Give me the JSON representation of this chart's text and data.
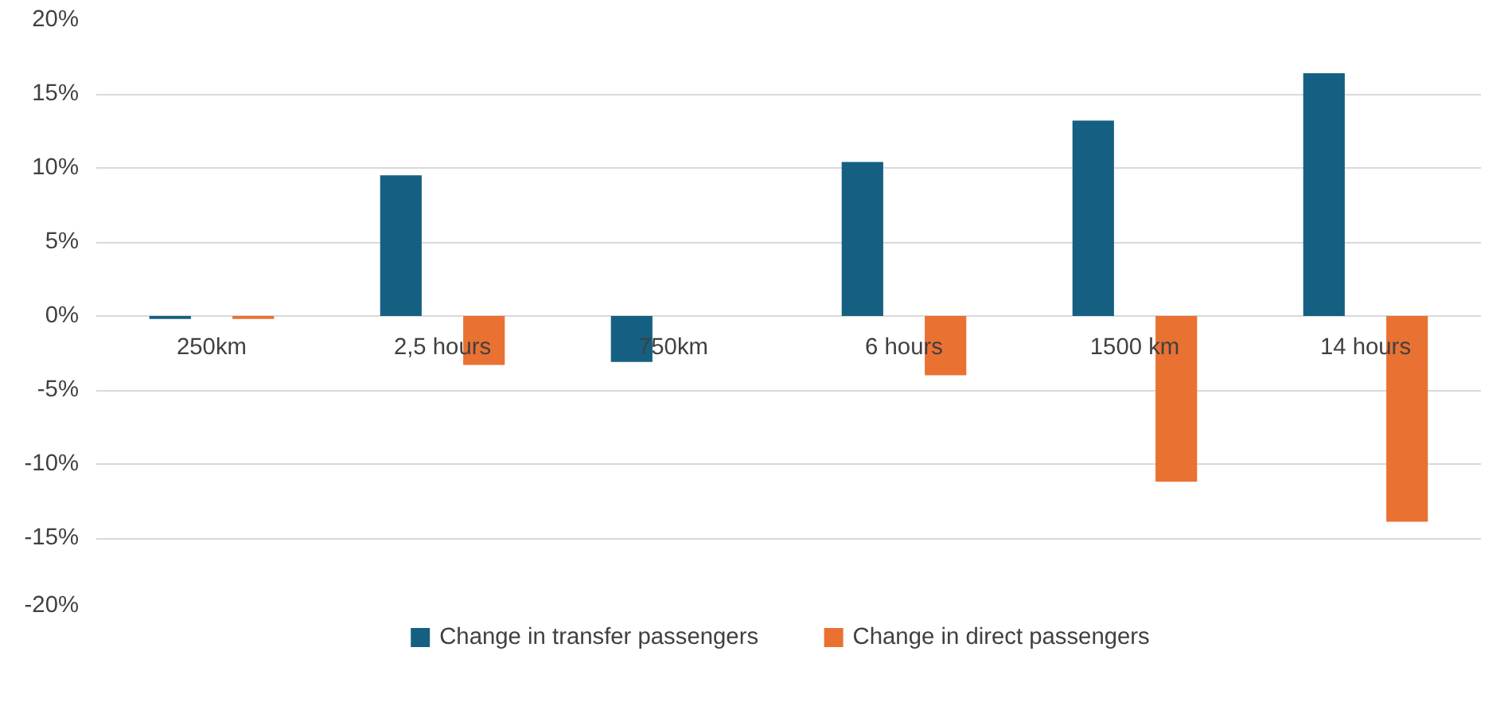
{
  "chart_data": {
    "type": "bar",
    "categories": [
      "250km",
      "2,5 hours",
      "750km",
      "6 hours",
      "1500 km",
      "14 hours"
    ],
    "series": [
      {
        "name": "Change in transfer passengers",
        "color": "#156082",
        "values": [
          -0.2,
          9.5,
          -3.1,
          10.4,
          13.2,
          16.4
        ]
      },
      {
        "name": "Change in direct passengers",
        "color": "#e97132",
        "values": [
          -0.2,
          -3.3,
          0,
          -4.0,
          -11.2,
          -13.9
        ]
      }
    ],
    "ylim": [
      -20,
      20
    ],
    "yticks": [
      {
        "value": -20,
        "label": "-20%"
      },
      {
        "value": -15,
        "label": "-15%"
      },
      {
        "value": -10,
        "label": "-10%"
      },
      {
        "value": -5,
        "label": "-5%"
      },
      {
        "value": 0,
        "label": "0%"
      },
      {
        "value": 5,
        "label": "5%"
      },
      {
        "value": 10,
        "label": "10%"
      },
      {
        "value": 15,
        "label": "15%"
      },
      {
        "value": 20,
        "label": "20%"
      }
    ],
    "grid": "y",
    "legend": "bottom"
  }
}
